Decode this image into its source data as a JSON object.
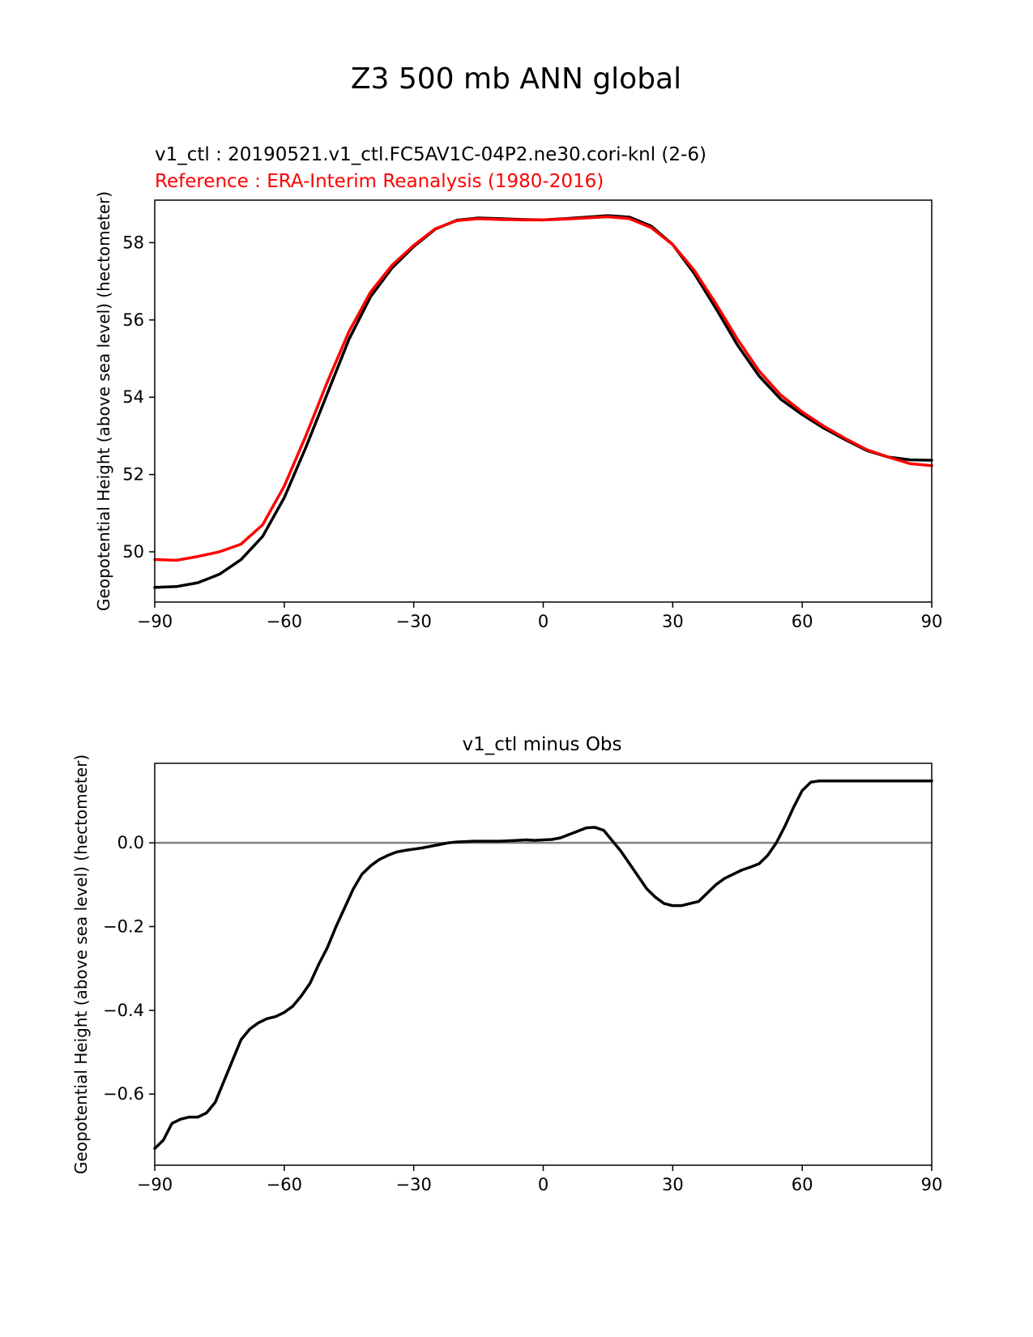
{
  "figure": {
    "suptitle": "Z3 500 mb ANN global"
  },
  "chart_data": [
    {
      "type": "line",
      "title_line1": "v1_ctl : 20190521.v1_ctl.FC5AV1C-04P2.ne30.cori-knl (2-6)",
      "title_line2": "Reference : ERA-Interim Reanalysis (1980-2016)",
      "xlabel": "",
      "ylabel": "Geopotential Height (above sea level) (hectometer)",
      "xlim": [
        -90,
        90
      ],
      "ylim": [
        48.7,
        59.1
      ],
      "xticks": [
        -90,
        -60,
        -30,
        0,
        30,
        60,
        90
      ],
      "xtick_labels": [
        "−90",
        "−60",
        "−30",
        "0",
        "30",
        "60",
        "90"
      ],
      "yticks": [
        50,
        52,
        54,
        56,
        58
      ],
      "ytick_labels": [
        "50",
        "52",
        "54",
        "56",
        "58"
      ],
      "series": [
        {
          "name": "v1_ctl",
          "color": "#000000",
          "x": [
            -90,
            -85,
            -80,
            -75,
            -70,
            -65,
            -60,
            -55,
            -50,
            -45,
            -40,
            -35,
            -30,
            -25,
            -20,
            -15,
            -10,
            -5,
            0,
            5,
            10,
            15,
            20,
            25,
            30,
            35,
            40,
            45,
            50,
            55,
            60,
            65,
            70,
            75,
            80,
            85,
            90
          ],
          "y": [
            49.08,
            49.1,
            49.2,
            49.42,
            49.8,
            50.4,
            51.4,
            52.7,
            54.1,
            55.5,
            56.6,
            57.35,
            57.9,
            58.35,
            58.58,
            58.64,
            58.62,
            58.6,
            58.59,
            58.62,
            58.66,
            58.7,
            58.66,
            58.43,
            57.95,
            57.2,
            56.3,
            55.35,
            54.55,
            53.95,
            53.55,
            53.2,
            52.9,
            52.62,
            52.45,
            52.38,
            52.37
          ]
        },
        {
          "name": "Reference",
          "color": "#ff0000",
          "x": [
            -90,
            -85,
            -80,
            -75,
            -70,
            -65,
            -60,
            -55,
            -50,
            -45,
            -40,
            -35,
            -30,
            -25,
            -20,
            -15,
            -10,
            -5,
            0,
            5,
            10,
            15,
            20,
            25,
            30,
            35,
            40,
            45,
            50,
            55,
            60,
            65,
            70,
            75,
            80,
            85,
            90
          ],
          "y": [
            49.8,
            49.78,
            49.88,
            50.0,
            50.2,
            50.7,
            51.7,
            53.0,
            54.4,
            55.7,
            56.72,
            57.42,
            57.93,
            58.36,
            58.57,
            58.62,
            58.6,
            58.59,
            58.59,
            58.61,
            58.64,
            58.67,
            58.62,
            58.39,
            57.95,
            57.28,
            56.42,
            55.5,
            54.68,
            54.06,
            53.62,
            53.25,
            52.93,
            52.64,
            52.45,
            52.28,
            52.23
          ]
        }
      ]
    },
    {
      "type": "line",
      "title": "v1_ctl minus Obs",
      "xlabel": "",
      "ylabel": "Geopotential Height (above sea level) (hectometer)",
      "xlim": [
        -90,
        90
      ],
      "ylim": [
        -0.77,
        0.19
      ],
      "xticks": [
        -90,
        -60,
        -30,
        0,
        30,
        60,
        90
      ],
      "xtick_labels": [
        "−90",
        "−60",
        "−30",
        "0",
        "30",
        "60",
        "90"
      ],
      "yticks": [
        0.0,
        -0.2,
        -0.4,
        -0.6
      ],
      "ytick_labels": [
        "0.0",
        "−0.2",
        "−0.4",
        "−0.6"
      ],
      "zero_line": {
        "y": 0,
        "color": "#808080"
      },
      "series": [
        {
          "name": "v1_ctl minus Obs",
          "color": "#000000",
          "x": [
            -90,
            -88,
            -86,
            -84,
            -82,
            -80,
            -78,
            -76,
            -74,
            -72,
            -70,
            -68,
            -66,
            -64,
            -62,
            -60,
            -58,
            -56,
            -54,
            -52,
            -50,
            -48,
            -46,
            -44,
            -42,
            -40,
            -38,
            -36,
            -34,
            -32,
            -30,
            -28,
            -26,
            -24,
            -22,
            -20,
            -18,
            -16,
            -14,
            -12,
            -10,
            -8,
            -6,
            -4,
            -2,
            0,
            2,
            4,
            6,
            8,
            10,
            12,
            14,
            16,
            18,
            20,
            22,
            24,
            26,
            28,
            30,
            32,
            34,
            36,
            38,
            40,
            42,
            44,
            46,
            48,
            50,
            52,
            54,
            56,
            58,
            60,
            62,
            64,
            66,
            68,
            70,
            72,
            74,
            76,
            78,
            80,
            82,
            84,
            86,
            88,
            90
          ],
          "y": [
            -0.73,
            -0.71,
            -0.67,
            -0.66,
            -0.655,
            -0.655,
            -0.645,
            -0.62,
            -0.57,
            -0.52,
            -0.47,
            -0.445,
            -0.43,
            -0.42,
            -0.415,
            -0.405,
            -0.39,
            -0.365,
            -0.335,
            -0.29,
            -0.25,
            -0.2,
            -0.155,
            -0.11,
            -0.075,
            -0.055,
            -0.04,
            -0.03,
            -0.022,
            -0.018,
            -0.015,
            -0.012,
            -0.008,
            -0.004,
            0.0,
            0.002,
            0.003,
            0.004,
            0.004,
            0.004,
            0.004,
            0.005,
            0.006,
            0.007,
            0.006,
            0.007,
            0.008,
            0.012,
            0.02,
            0.028,
            0.036,
            0.037,
            0.03,
            0.005,
            -0.02,
            -0.05,
            -0.08,
            -0.11,
            -0.13,
            -0.145,
            -0.15,
            -0.15,
            -0.145,
            -0.14,
            -0.12,
            -0.1,
            -0.085,
            -0.075,
            -0.065,
            -0.058,
            -0.05,
            -0.03,
            0.0,
            0.04,
            0.085,
            0.125,
            0.145,
            0.148,
            0.148,
            0.148,
            0.148,
            0.148,
            0.148,
            0.148,
            0.148,
            0.148,
            0.148,
            0.148,
            0.148,
            0.148,
            0.148
          ]
        }
      ]
    }
  ]
}
